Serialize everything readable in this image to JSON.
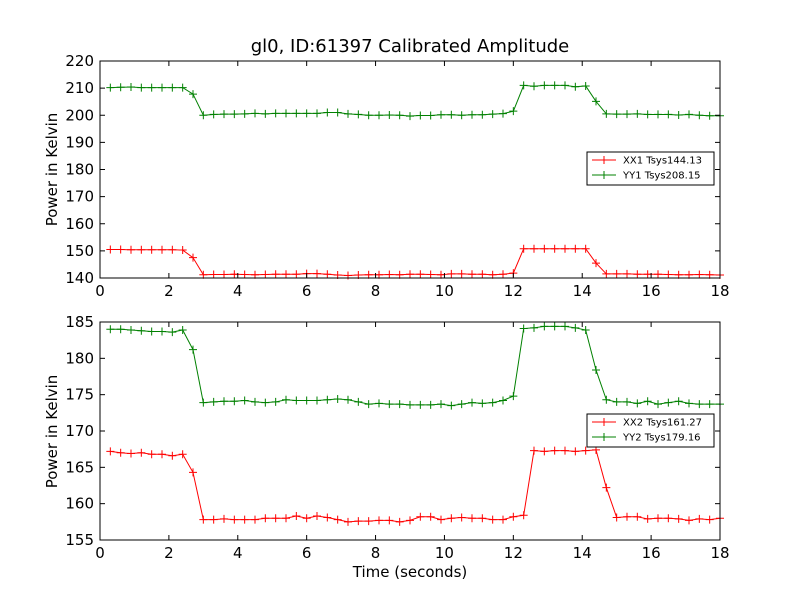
{
  "chart_data": [
    {
      "type": "line",
      "title": "gl0, ID:61397 Calibrated Amplitude",
      "xlabel": "",
      "ylabel": "Power in Kelvin",
      "xlim": [
        0,
        18
      ],
      "ylim": [
        140,
        220
      ],
      "xticks": [
        0,
        2,
        4,
        6,
        8,
        10,
        12,
        14,
        16,
        18
      ],
      "yticks": [
        140,
        150,
        160,
        170,
        180,
        190,
        200,
        210,
        220
      ],
      "legend_position": "right",
      "marker": "+",
      "x": [
        0.3,
        0.6,
        0.9,
        1.2,
        1.5,
        1.8,
        2.1,
        2.4,
        2.7,
        3.0,
        3.3,
        3.6,
        3.9,
        4.2,
        4.5,
        4.8,
        5.1,
        5.4,
        5.7,
        6.0,
        6.3,
        6.6,
        6.9,
        7.2,
        7.5,
        7.8,
        8.1,
        8.4,
        8.7,
        9.0,
        9.3,
        9.6,
        9.9,
        10.2,
        10.5,
        10.8,
        11.1,
        11.4,
        11.7,
        12.0,
        12.3,
        12.6,
        12.9,
        13.2,
        13.5,
        13.8,
        14.1,
        14.4,
        14.7,
        15.0,
        15.3,
        15.6,
        15.9,
        16.2,
        16.5,
        16.8,
        17.1,
        17.4,
        17.7,
        18.0
      ],
      "series": [
        {
          "name": "XX1 Tsys144.13",
          "color": "#ff0000",
          "values": [
            150.5,
            150.5,
            150.4,
            150.4,
            150.4,
            150.4,
            150.4,
            150.3,
            147.5,
            141.2,
            141.3,
            141.3,
            141.4,
            141.3,
            141.2,
            141.3,
            141.4,
            141.4,
            141.4,
            141.6,
            141.6,
            141.4,
            141.1,
            140.9,
            141.1,
            141.2,
            141.2,
            141.3,
            141.2,
            141.4,
            141.4,
            141.3,
            141.2,
            141.5,
            141.5,
            141.4,
            141.4,
            141.2,
            141.4,
            141.8,
            150.8,
            150.8,
            150.8,
            150.8,
            150.8,
            150.8,
            150.8,
            145.5,
            141.5,
            141.5,
            141.5,
            141.4,
            141.4,
            141.4,
            141.3,
            141.2,
            141.2,
            141.3,
            141.2,
            141.1
          ]
        },
        {
          "name": "YY1 Tsys208.15",
          "color": "#008000",
          "values": [
            210.2,
            210.3,
            210.4,
            210.2,
            210.2,
            210.2,
            210.2,
            210.2,
            207.8,
            200.0,
            200.3,
            200.4,
            200.4,
            200.5,
            200.7,
            200.5,
            200.7,
            200.7,
            200.7,
            200.7,
            200.7,
            201.0,
            201.0,
            200.5,
            200.3,
            200.0,
            200.0,
            200.1,
            200.0,
            199.7,
            199.9,
            199.9,
            200.2,
            200.2,
            200.0,
            200.2,
            200.2,
            200.4,
            200.6,
            201.5,
            211.0,
            210.7,
            211.0,
            211.0,
            211.0,
            210.5,
            210.8,
            205.1,
            200.5,
            200.4,
            200.4,
            200.5,
            200.3,
            200.3,
            200.3,
            200.1,
            200.3,
            200.0,
            199.8,
            199.8
          ]
        }
      ]
    },
    {
      "type": "line",
      "title": "",
      "xlabel": "Time (seconds)",
      "ylabel": "Power in Kelvin",
      "xlim": [
        0,
        18
      ],
      "ylim": [
        155,
        185
      ],
      "xticks": [
        0,
        2,
        4,
        6,
        8,
        10,
        12,
        14,
        16,
        18
      ],
      "yticks": [
        155,
        160,
        165,
        170,
        175,
        180,
        185
      ],
      "legend_position": "right",
      "marker": "+",
      "x": [
        0.3,
        0.6,
        0.9,
        1.2,
        1.5,
        1.8,
        2.1,
        2.4,
        2.7,
        3.0,
        3.3,
        3.6,
        3.9,
        4.2,
        4.5,
        4.8,
        5.1,
        5.4,
        5.7,
        6.0,
        6.3,
        6.6,
        6.9,
        7.2,
        7.5,
        7.8,
        8.1,
        8.4,
        8.7,
        9.0,
        9.3,
        9.6,
        9.9,
        10.2,
        10.5,
        10.8,
        11.1,
        11.4,
        11.7,
        12.0,
        12.3,
        12.6,
        12.9,
        13.2,
        13.5,
        13.8,
        14.1,
        14.4,
        14.7,
        15.0,
        15.3,
        15.6,
        15.9,
        16.2,
        16.5,
        16.8,
        17.1,
        17.4,
        17.7,
        18.0
      ],
      "series": [
        {
          "name": "XX2 Tsys161.27",
          "color": "#ff0000",
          "values": [
            167.2,
            167.0,
            166.9,
            167.0,
            166.8,
            166.8,
            166.6,
            166.8,
            164.3,
            157.8,
            157.8,
            157.9,
            157.8,
            157.8,
            157.8,
            158.0,
            158.0,
            158.0,
            158.3,
            158.0,
            158.3,
            158.1,
            157.8,
            157.5,
            157.6,
            157.6,
            157.7,
            157.7,
            157.5,
            157.7,
            158.2,
            158.2,
            157.8,
            158.0,
            158.1,
            158.0,
            158.0,
            157.8,
            157.8,
            158.2,
            158.4,
            167.3,
            167.2,
            167.3,
            167.3,
            167.2,
            167.3,
            167.4,
            162.2,
            158.1,
            158.2,
            158.2,
            157.9,
            158.0,
            158.0,
            157.9,
            157.7,
            157.9,
            157.8,
            158.0
          ]
        },
        {
          "name": "YY2 Tsys179.16",
          "color": "#008000",
          "values": [
            184.0,
            184.0,
            183.9,
            183.8,
            183.7,
            183.7,
            183.6,
            183.9,
            181.2,
            173.9,
            174.0,
            174.1,
            174.1,
            174.2,
            174.0,
            173.9,
            174.0,
            174.3,
            174.2,
            174.2,
            174.2,
            174.3,
            174.4,
            174.3,
            174.0,
            173.7,
            173.8,
            173.7,
            173.7,
            173.6,
            173.6,
            173.6,
            173.7,
            173.5,
            173.7,
            173.9,
            173.8,
            173.9,
            174.2,
            174.8,
            184.1,
            184.2,
            184.4,
            184.4,
            184.4,
            184.2,
            183.9,
            178.4,
            174.3,
            174.0,
            174.0,
            173.8,
            174.1,
            173.7,
            173.9,
            174.1,
            173.8,
            173.7,
            173.7,
            173.7
          ]
        }
      ]
    }
  ]
}
